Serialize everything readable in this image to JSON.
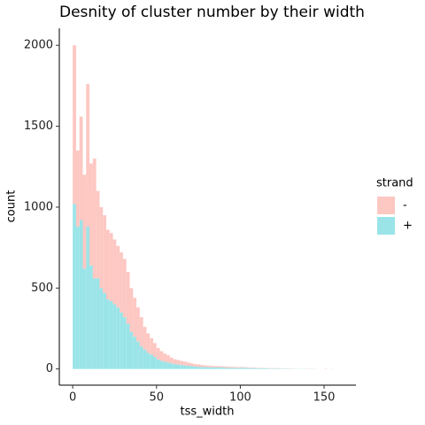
{
  "chart_data": {
    "type": "histogram",
    "title": "Desnity of cluster number by their width",
    "x_label": "tss_width",
    "y_label": "count",
    "legend_title": "strand",
    "stacked": true,
    "grid": false,
    "legend": "right",
    "bins": [
      0,
      2,
      4,
      6,
      8,
      10,
      12,
      14,
      16,
      18,
      20,
      22,
      24,
      26,
      28,
      30,
      32,
      34,
      36,
      38,
      40,
      42,
      44,
      46,
      48,
      50,
      52,
      54,
      56,
      58,
      60,
      62,
      64,
      66,
      68,
      70,
      72,
      74,
      76,
      78,
      80,
      82,
      84,
      86,
      88,
      90,
      92,
      94,
      96,
      98,
      100,
      102,
      104,
      106,
      108,
      110,
      112,
      114,
      116,
      118,
      120,
      122,
      124,
      126,
      128,
      130,
      132,
      134,
      136,
      138,
      140,
      142,
      144,
      146,
      148,
      150,
      152,
      154,
      156,
      158,
      160
    ],
    "series": [
      {
        "name": "-",
        "color": "#fdc7c2",
        "values": [
          980,
          470,
          640,
          580,
          880,
          630,
          740,
          540,
          500,
          480,
          430,
          420,
          400,
          380,
          370,
          360,
          320,
          270,
          240,
          210,
          180,
          140,
          120,
          100,
          85,
          70,
          60,
          50,
          45,
          35,
          30,
          27,
          25,
          23,
          20,
          17,
          15,
          14,
          12,
          10,
          10,
          9,
          8,
          8,
          7,
          7,
          6,
          6,
          5,
          5,
          4,
          4,
          3,
          3,
          3,
          2,
          2,
          2,
          2,
          2,
          2,
          2,
          1,
          1,
          1,
          1,
          1,
          0,
          0,
          0,
          2,
          0,
          1,
          0,
          0,
          2,
          0,
          1,
          0,
          0
        ]
      },
      {
        "name": "+",
        "color": "#9ae4e8",
        "values": [
          1020,
          880,
          920,
          620,
          880,
          640,
          560,
          560,
          500,
          470,
          430,
          420,
          400,
          380,
          350,
          320,
          280,
          230,
          200,
          170,
          140,
          120,
          100,
          90,
          75,
          60,
          50,
          45,
          40,
          35,
          30,
          28,
          25,
          22,
          20,
          18,
          15,
          14,
          13,
          12,
          11,
          10,
          10,
          9,
          9,
          8,
          8,
          7,
          7,
          6,
          8,
          7,
          6,
          6,
          5,
          5,
          4,
          4,
          3,
          3,
          3,
          3,
          2,
          2,
          2,
          1,
          1,
          1,
          1,
          1,
          0,
          1,
          0,
          0,
          0,
          0,
          0,
          0,
          0,
          0
        ]
      }
    ],
    "xlim": [
      -8,
      169
    ],
    "xticks": [
      0,
      50,
      100,
      150
    ],
    "ylim": [
      -100,
      2105
    ],
    "yticks": [
      0,
      500,
      1000,
      1500,
      2000
    ]
  }
}
